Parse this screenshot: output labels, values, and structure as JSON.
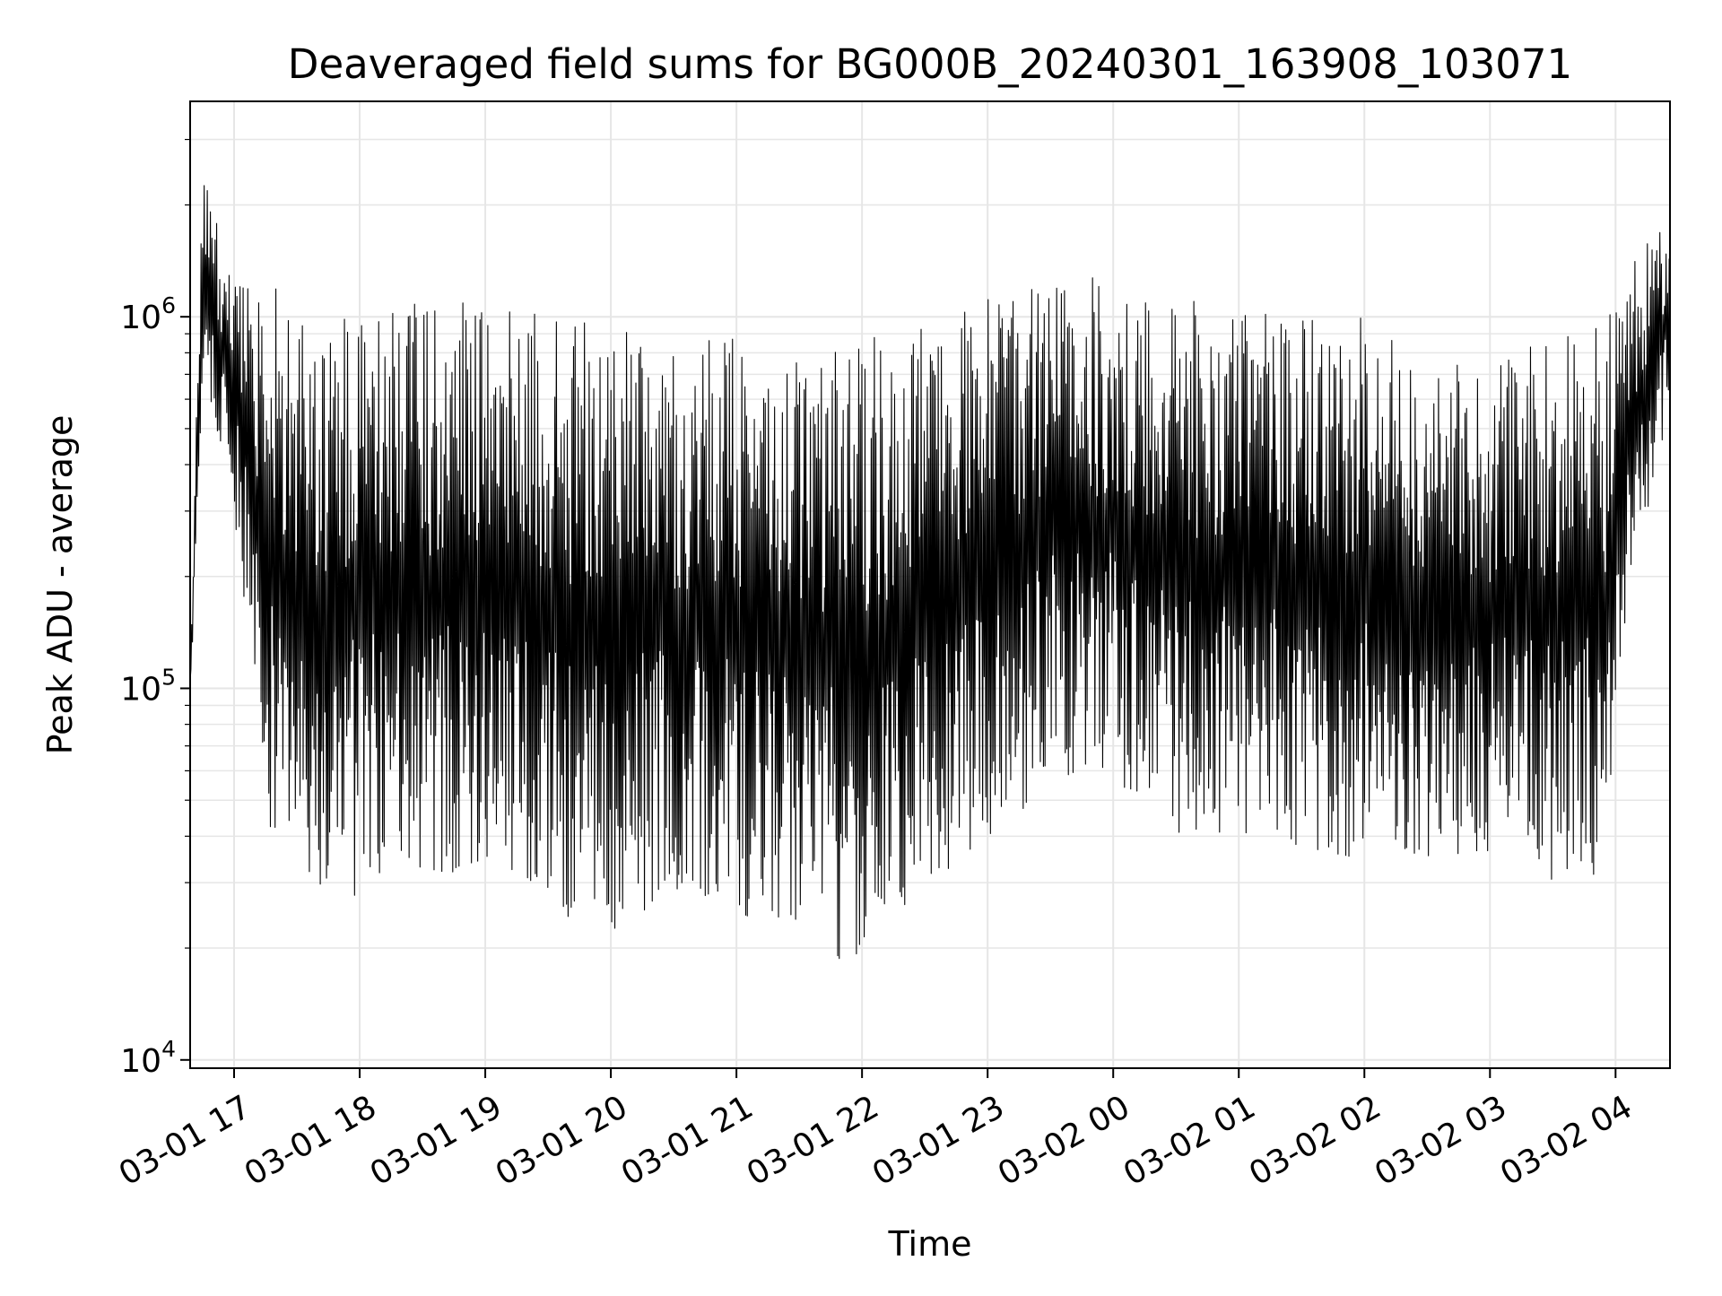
{
  "chart_data": {
    "type": "line",
    "title": "Deaveraged field sums for BG000B_20240301_163908_103071",
    "xlabel": "Time",
    "ylabel": "Peak ADU - average",
    "yscale": "log",
    "ylim": [
      9500,
      3800000
    ],
    "xlim": [
      "2024-03-01 16:39",
      "2024-03-02 04:26"
    ],
    "grid": true,
    "line_color": "#000000",
    "x_ticks": [
      "03-01 17",
      "03-01 18",
      "03-01 19",
      "03-01 20",
      "03-01 21",
      "03-01 22",
      "03-01 23",
      "03-02 00",
      "03-02 01",
      "03-02 02",
      "03-02 03",
      "03-02 04"
    ],
    "y_ticks": [
      {
        "value": 10000,
        "base": "10",
        "exp": "4"
      },
      {
        "value": 100000,
        "base": "10",
        "exp": "5"
      },
      {
        "value": 1000000,
        "base": "10",
        "exp": "6"
      }
    ],
    "envelope": {
      "time": [
        "2024-03-01 16:39",
        "2024-03-01 16:45",
        "2024-03-01 16:51",
        "2024-03-01 17:00",
        "2024-03-01 17:15",
        "2024-03-01 17:30",
        "2024-03-01 17:45",
        "2024-03-01 18:00",
        "2024-03-01 18:30",
        "2024-03-01 19:00",
        "2024-03-01 19:30",
        "2024-03-01 20:00",
        "2024-03-01 20:30",
        "2024-03-01 21:00",
        "2024-03-01 21:30",
        "2024-03-01 22:00",
        "2024-03-01 22:30",
        "2024-03-01 23:00",
        "2024-03-01 23:30",
        "2024-03-02 00:00",
        "2024-03-02 00:30",
        "2024-03-02 01:00",
        "2024-03-02 01:30",
        "2024-03-02 02:00",
        "2024-03-02 02:30",
        "2024-03-02 03:00",
        "2024-03-02 03:30",
        "2024-03-02 03:55",
        "2024-03-02 04:05",
        "2024-03-02 04:15",
        "2024-03-02 04:26"
      ],
      "low": [
        90000,
        700000,
        500000,
        300000,
        45000,
        30000,
        25000,
        28000,
        28000,
        30000,
        24000,
        22000,
        28000,
        25000,
        20000,
        18000,
        30000,
        35000,
        60000,
        55000,
        40000,
        40000,
        35000,
        35000,
        35000,
        35000,
        30000,
        30000,
        150000,
        250000,
        600000
      ],
      "high": [
        110000,
        2800000,
        1900000,
        1300000,
        1300000,
        1100000,
        1050000,
        1150000,
        1100000,
        1100000,
        1000000,
        950000,
        850000,
        900000,
        800000,
        900000,
        950000,
        1150000,
        1300000,
        1350000,
        1150000,
        1050000,
        1000000,
        1000000,
        750000,
        750000,
        900000,
        950000,
        1400000,
        1700000,
        1700000
      ]
    }
  }
}
